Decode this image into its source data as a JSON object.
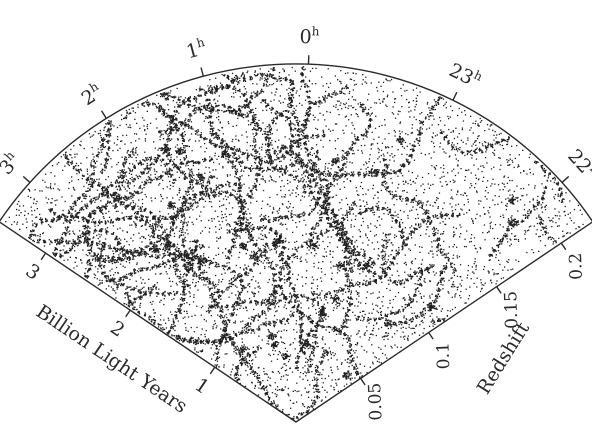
{
  "ra_ticks": [
    {
      "hour": "3",
      "unit": "h"
    },
    {
      "hour": "2",
      "unit": "h"
    },
    {
      "hour": "1",
      "unit": "h"
    },
    {
      "hour": "0",
      "unit": "h"
    },
    {
      "hour": "23",
      "unit": "h"
    },
    {
      "hour": "22",
      "unit": "h"
    }
  ],
  "distance_axis": {
    "title": "Billion Light Years",
    "ticks": [
      "1",
      "2",
      "3"
    ]
  },
  "redshift_axis": {
    "title": "Redshift",
    "ticks": [
      "0.05",
      "0.1",
      "0.15",
      "0.2"
    ]
  },
  "colors": {
    "ink": "#202020",
    "background": "#ffffff"
  }
}
